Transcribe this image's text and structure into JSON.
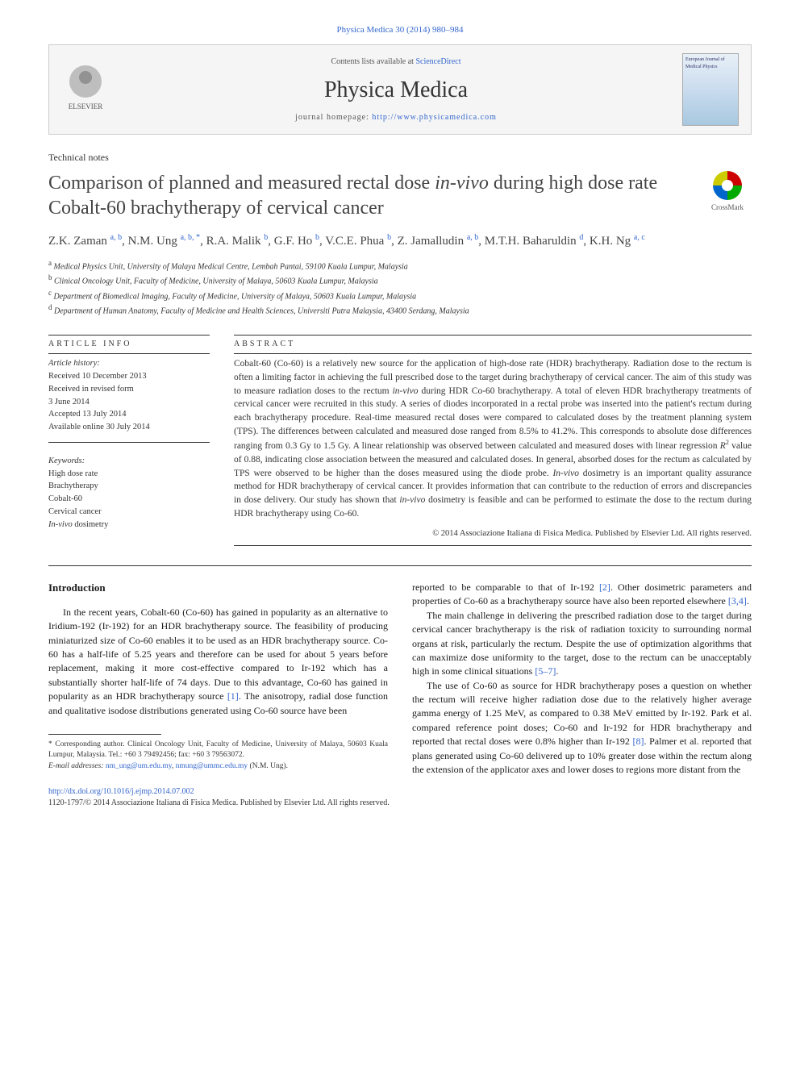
{
  "citation": "Physica Medica 30 (2014) 980–984",
  "header": {
    "contents_text": "Contents lists available at ",
    "contents_link": "ScienceDirect",
    "journal_name": "Physica Medica",
    "homepage_label": "journal homepage: ",
    "homepage_url": "http://www.physicamedica.com",
    "publisher": "ELSEVIER",
    "cover_text": "European Journal of Medical Physics"
  },
  "article_type": "Technical notes",
  "title_part1": "Comparison of planned and measured rectal dose ",
  "title_italic": "in-vivo",
  "title_part2": " during high dose rate Cobalt-60 brachytherapy of cervical cancer",
  "crossmark_label": "CrossMark",
  "authors_html": "Z.K. Zaman <sup>a, b</sup>, N.M. Ung <sup>a, b, *</sup>, R.A. Malik <sup>b</sup>, G.F. Ho <sup>b</sup>, V.C.E. Phua <sup>b</sup>, Z. Jamalludin <sup>a, b</sup>, M.T.H. Baharuldin <sup>d</sup>, K.H. Ng <sup>a, c</sup>",
  "affiliations": [
    "a Medical Physics Unit, University of Malaya Medical Centre, Lembah Pantai, 59100 Kuala Lumpur, Malaysia",
    "b Clinical Oncology Unit, Faculty of Medicine, University of Malaya, 50603 Kuala Lumpur, Malaysia",
    "c Department of Biomedical Imaging, Faculty of Medicine, University of Malaya, 50603 Kuala Lumpur, Malaysia",
    "d Department of Human Anatomy, Faculty of Medicine and Health Sciences, Universiti Putra Malaysia, 43400 Serdang, Malaysia"
  ],
  "article_info": {
    "label": "ARTICLE INFO",
    "history_label": "Article history:",
    "history": [
      "Received 10 December 2013",
      "Received in revised form",
      "3 June 2014",
      "Accepted 13 July 2014",
      "Available online 30 July 2014"
    ],
    "keywords_label": "Keywords:",
    "keywords": [
      "High dose rate",
      "Brachytherapy",
      "Cobalt-60",
      "Cervical cancer",
      "In-vivo dosimetry"
    ]
  },
  "abstract": {
    "label": "ABSTRACT",
    "text": "Cobalt-60 (Co-60) is a relatively new source for the application of high-dose rate (HDR) brachytherapy. Radiation dose to the rectum is often a limiting factor in achieving the full prescribed dose to the target during brachytherapy of cervical cancer. The aim of this study was to measure radiation doses to the rectum in-vivo during HDR Co-60 brachytherapy. A total of eleven HDR brachytherapy treatments of cervical cancer were recruited in this study. A series of diodes incorporated in a rectal probe was inserted into the patient's rectum during each brachytherapy procedure. Real-time measured rectal doses were compared to calculated doses by the treatment planning system (TPS). The differences between calculated and measured dose ranged from 8.5% to 41.2%. This corresponds to absolute dose differences ranging from 0.3 Gy to 1.5 Gy. A linear relationship was observed between calculated and measured doses with linear regression R² value of 0.88, indicating close association between the measured and calculated doses. In general, absorbed doses for the rectum as calculated by TPS were observed to be higher than the doses measured using the diode probe. In-vivo dosimetry is an important quality assurance method for HDR brachytherapy of cervical cancer. It provides information that can contribute to the reduction of errors and discrepancies in dose delivery. Our study has shown that in-vivo dosimetry is feasible and can be performed to estimate the dose to the rectum during HDR brachytherapy using Co-60.",
    "copyright": "© 2014 Associazione Italiana di Fisica Medica. Published by Elsevier Ltd. All rights reserved."
  },
  "body": {
    "section_heading": "Introduction",
    "col1_p1": "In the recent years, Cobalt-60 (Co-60) has gained in popularity as an alternative to Iridium-192 (Ir-192) for an HDR brachytherapy source. The feasibility of producing miniaturized size of Co-60 enables it to be used as an HDR brachytherapy source. Co-60 has a half-life of 5.25 years and therefore can be used for about 5 years before replacement, making it more cost-effective compared to Ir-192 which has a substantially shorter half-life of 74 days. Due to this advantage, Co-60 has gained in popularity as an HDR brachytherapy source ",
    "col1_ref1": "[1]",
    "col1_p1b": ". The anisotropy, radial dose function and qualitative isodose distributions generated using Co-60 source have been",
    "col2_p1a": "reported to be comparable to that of Ir-192 ",
    "col2_ref2": "[2]",
    "col2_p1b": ". Other dosimetric parameters and properties of Co-60 as a brachytherapy source have also been reported elsewhere ",
    "col2_ref34": "[3,4]",
    "col2_p1c": ".",
    "col2_p2a": "The main challenge in delivering the prescribed radiation dose to the target during cervical cancer brachytherapy is the risk of radiation toxicity to surrounding normal organs at risk, particularly the rectum. Despite the use of optimization algorithms that can maximize dose uniformity to the target, dose to the rectum can be unacceptably high in some clinical situations ",
    "col2_ref57": "[5–7]",
    "col2_p2b": ".",
    "col2_p3a": "The use of Co-60 as source for HDR brachytherapy poses a question on whether the rectum will receive higher radiation dose due to the relatively higher average gamma energy of 1.25 MeV, as compared to 0.38 MeV emitted by Ir-192. Park et al. compared reference point doses; Co-60 and Ir-192 for HDR brachytherapy and reported that rectal doses were 0.8% higher than Ir-192 ",
    "col2_ref8": "[8]",
    "col2_p3b": ". Palmer et al. reported that plans generated using Co-60 delivered up to 10% greater dose within the rectum along the extension of the applicator axes and lower doses to regions more distant from the"
  },
  "footnote": {
    "corresponding": "* Corresponding author. Clinical Oncology Unit, Faculty of Medicine, University of Malaya, 50603 Kuala Lumpur, Malaysia. Tel.: +60 3 79492456; fax: +60 3 79563072.",
    "email_label": "E-mail addresses: ",
    "email1": "nm_ung@um.edu.my",
    "email_sep": ", ",
    "email2": "nmung@ummc.edu.my",
    "email_tail": " (N.M. Ung)."
  },
  "doi": "http://dx.doi.org/10.1016/j.ejmp.2014.07.002",
  "issn": "1120-1797/© 2014 Associazione Italiana di Fisica Medica. Published by Elsevier Ltd. All rights reserved.",
  "colors": {
    "link": "#3366cc",
    "text": "#333333",
    "border": "#cccccc",
    "header_bg": "#f5f5f5"
  }
}
